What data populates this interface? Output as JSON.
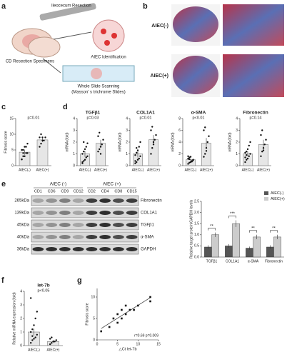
{
  "panel_labels": [
    "a",
    "b",
    "c",
    "d",
    "e",
    "f",
    "g"
  ],
  "illustration": {
    "resection": "Ileocecum Resection",
    "identification": "AIEC Identification",
    "specimens": "CD Resection Specimens",
    "scanning": "Whole Slide Scanning",
    "slides": "(Masson’ s trichrome Slides)"
  },
  "histology": {
    "labels": [
      "AIEC(-)",
      "AIEC(+)"
    ]
  },
  "blot": {
    "groups": [
      "AIEC (-)",
      "AIEC (+)"
    ],
    "lanes": [
      "CD1",
      "CD6",
      "CD9",
      "CD12",
      "CD2",
      "CD4",
      "CD8",
      "CD15"
    ],
    "sizes": [
      "265kDa",
      "139kDa",
      "45kDa",
      "40kDa",
      "36kDa"
    ],
    "proteins": [
      "Fibronectin",
      "COL1A1",
      "TGFβ1",
      "α-SMA",
      "GAPDH"
    ]
  },
  "chart_data": [
    {
      "type": "dotbar",
      "ylabel": "Fibrosis score",
      "annotation": "p=0.01",
      "categories": [
        "AIEC(-)",
        "AIEC(+)"
      ],
      "values": [
        4.3,
        8.2
      ],
      "errors": [
        0.8,
        0.7
      ],
      "points": [
        [
          2,
          3,
          3,
          4,
          4,
          5,
          5,
          6,
          6,
          7,
          2,
          4
        ],
        [
          6,
          7,
          8,
          8,
          9,
          9,
          10,
          9
        ]
      ],
      "ylim": [
        0,
        15
      ],
      "yticks": [
        0,
        5,
        10,
        15
      ]
    },
    {
      "type": "dotbar",
      "title": "TGFβ1",
      "ylabel": "mRNA (fold)",
      "annotation": "p=0.03",
      "categories": [
        "AIEC(-)",
        "AIEC(+)"
      ],
      "values": [
        1.0,
        1.9
      ],
      "errors": [
        0.25,
        0.3
      ],
      "points": [
        [
          0.2,
          0.4,
          0.5,
          0.7,
          0.8,
          1.0,
          1.2,
          1.4,
          1.6,
          1.9,
          0.3,
          2.0
        ],
        [
          1.2,
          1.4,
          1.6,
          1.8,
          2.2,
          2.5,
          2.8,
          1.0
        ]
      ],
      "ylim": [
        0,
        4
      ],
      "yticks": [
        0,
        1,
        2,
        3,
        4
      ]
    },
    {
      "type": "dotbar",
      "title": "COL1A1",
      "ylabel": "mRNA (fold)",
      "annotation": "p=0.01",
      "categories": [
        "AIEC(-)",
        "AIEC(+)"
      ],
      "values": [
        1.0,
        2.2
      ],
      "errors": [
        0.3,
        0.4
      ],
      "points": [
        [
          0.2,
          0.3,
          0.5,
          0.6,
          0.8,
          0.9,
          1.1,
          1.3,
          1.6,
          2.0,
          0.4,
          1.5
        ],
        [
          1.0,
          1.5,
          1.8,
          2.2,
          2.6,
          3.0,
          3.3,
          2.0
        ]
      ],
      "ylim": [
        0,
        4
      ],
      "yticks": [
        0,
        1,
        2,
        3,
        4
      ]
    },
    {
      "type": "dotbar",
      "title": "α-SMA",
      "ylabel": "mRNA (fold)",
      "annotation": "p<0.01",
      "categories": [
        "AIEC(-)",
        "AIEC(+)"
      ],
      "values": [
        1.0,
        3.8
      ],
      "errors": [
        0.2,
        0.9
      ],
      "points": [
        [
          0.3,
          0.5,
          0.6,
          0.8,
          1.0,
          1.2,
          1.4,
          1.5,
          0.7,
          0.9,
          1.6,
          1.1
        ],
        [
          1.5,
          2.0,
          3.0,
          4.0,
          5.0,
          6.0,
          6.5,
          2.5
        ]
      ],
      "ylim": [
        0,
        8
      ],
      "yticks": [
        0,
        2,
        4,
        6,
        8
      ]
    },
    {
      "type": "dotbar",
      "title": "Fibronectin",
      "ylabel": "mRNA (fold)",
      "annotation": "p=0.14",
      "categories": [
        "AIEC(-)",
        "AIEC(+)"
      ],
      "values": [
        1.0,
        1.8
      ],
      "errors": [
        0.2,
        0.4
      ],
      "points": [
        [
          0.3,
          0.5,
          0.6,
          0.8,
          1.0,
          1.1,
          1.2,
          1.4,
          1.7,
          2.0,
          0.7,
          0.9
        ],
        [
          0.8,
          1.2,
          1.5,
          1.8,
          2.2,
          2.6,
          3.0,
          1.3
        ]
      ],
      "ylim": [
        0,
        4
      ],
      "yticks": [
        0,
        1,
        2,
        3,
        4
      ]
    },
    {
      "type": "groupbar",
      "ylabel": "Relative target protein/GAPDH levels",
      "categories": [
        "TGFβ1",
        "COL1A1",
        "α-SMA",
        "Fibronectin"
      ],
      "annotations": [
        "**",
        "***",
        "**",
        "**"
      ],
      "series": [
        {
          "name": "AIEC(-)",
          "color": "#555555",
          "values": [
            0.45,
            0.5,
            0.4,
            0.45
          ],
          "errors": [
            0.08,
            0.08,
            0.07,
            0.08
          ]
        },
        {
          "name": "AIEC(+)",
          "color": "#cccccc",
          "values": [
            1.0,
            1.5,
            0.9,
            0.9
          ],
          "errors": [
            0.1,
            0.15,
            0.1,
            0.1
          ]
        }
      ],
      "ylim": [
        0,
        2.5
      ],
      "yticks": [
        {
          "value": 0,
          "label": "0.0"
        },
        {
          "value": 0.5,
          "label": "0.5"
        },
        {
          "value": 1,
          "label": "1.0"
        },
        {
          "value": 1.5,
          "label": "1.5"
        },
        {
          "value": 2,
          "label": "2.0"
        },
        {
          "value": 2.5,
          "label": "2.5"
        }
      ],
      "legend": "upper right"
    },
    {
      "type": "dotbar",
      "title": "let-7b",
      "ylabel": "Relative miRNA expression (fold)",
      "annotation": "p<0.05",
      "categories": [
        "AIEC(-)",
        "AIEC(+)"
      ],
      "values": [
        1.0,
        0.3
      ],
      "errors": [
        0.25,
        0.1
      ],
      "points": [
        [
          0.2,
          0.4,
          0.5,
          0.6,
          0.8,
          1.0,
          1.2,
          1.5,
          2.0,
          2.5,
          3.5,
          0.7
        ],
        [
          0.1,
          0.2,
          0.3,
          0.3,
          0.4,
          0.5,
          0.6
        ]
      ],
      "ylim": [
        0,
        4
      ],
      "yticks": [
        0,
        1,
        2,
        3,
        4
      ]
    },
    {
      "type": "scatter",
      "ylabel": "Fibrosis score",
      "xlabel": "△Ct let-7b",
      "annotation": "r=0.69 p=0.009",
      "x": [
        1,
        3,
        4,
        5,
        5,
        6,
        6,
        7,
        7,
        8,
        9,
        10,
        13,
        13
      ],
      "y": [
        2,
        3,
        5,
        4,
        6,
        5,
        7,
        6,
        8,
        7,
        7,
        8,
        10,
        9
      ],
      "xlim": [
        0,
        15
      ],
      "xticks": [
        0,
        5,
        10,
        15
      ],
      "ylim": [
        0,
        12
      ],
      "yticks": [
        0,
        5,
        10
      ]
    }
  ]
}
